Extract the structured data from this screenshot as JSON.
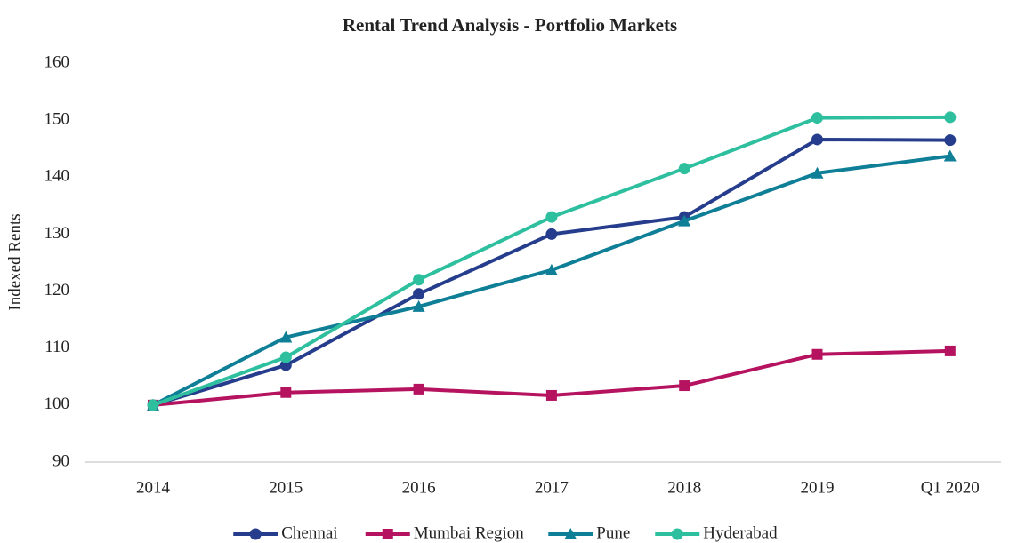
{
  "chart_data": {
    "type": "line",
    "title": "Rental Trend Analysis - Portfolio Markets",
    "y_label": "Indexed Rents",
    "categories": [
      "2014",
      "2015",
      "2016",
      "2017",
      "2018",
      "2019",
      "Q1 2020"
    ],
    "series": [
      {
        "name": "Chennai",
        "color": "#253d8c",
        "marker": "circle",
        "values": [
          100,
          107,
          119.5,
          130,
          133,
          146.6,
          146.5
        ]
      },
      {
        "name": "Mumbai Region",
        "color": "#b5135f",
        "marker": "square",
        "values": [
          100,
          102.2,
          102.8,
          101.7,
          103.4,
          108.9,
          109.5
        ]
      },
      {
        "name": "Pune",
        "color": "#0f7f98",
        "marker": "triangle",
        "values": [
          100,
          111.9,
          117.3,
          123.7,
          132.3,
          140.7,
          143.7
        ]
      },
      {
        "name": "Hyderabad",
        "color": "#2ebf9f",
        "marker": "circle",
        "values": [
          100,
          108.4,
          122,
          133,
          141.5,
          150.4,
          150.5
        ]
      }
    ],
    "ylim": [
      90,
      160
    ],
    "yticks": [
      90,
      100,
      110,
      120,
      130,
      140,
      150,
      160
    ],
    "grid": false,
    "legend": "bottom"
  }
}
